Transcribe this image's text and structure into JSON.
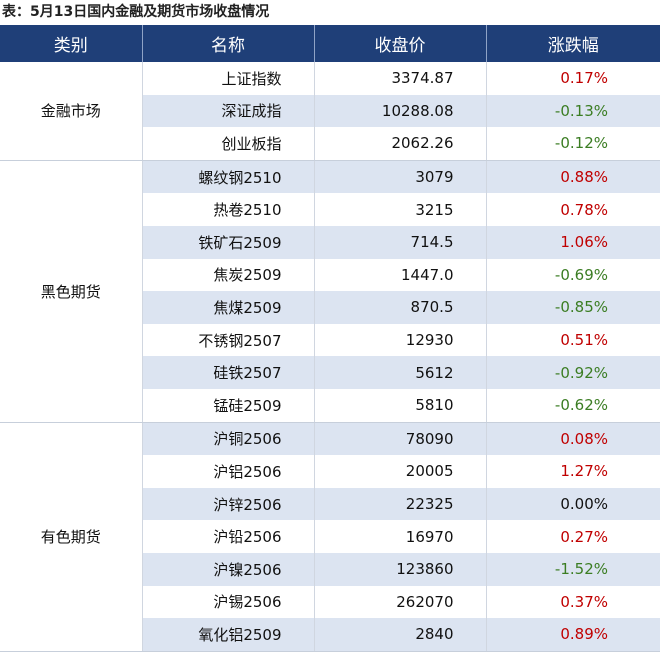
{
  "caption": "表：5月13日国内金融及期货市场收盘情况",
  "headers": [
    "类别",
    "名称",
    "收盘价",
    "涨跌幅"
  ],
  "colors": {
    "header_bg": "#1f3f78",
    "stripe": "#dce4f1",
    "up": "#c00000",
    "down": "#3b7d23"
  },
  "groups": [
    {
      "category": "金融市场",
      "rows": [
        {
          "name": "上证指数",
          "close": "3374.87",
          "change": "0.17%",
          "dir": "up"
        },
        {
          "name": "深证成指",
          "close": "10288.08",
          "change": "-0.13%",
          "dir": "down"
        },
        {
          "name": "创业板指",
          "close": "2062.26",
          "change": "-0.12%",
          "dir": "down"
        }
      ]
    },
    {
      "category": "黑色期货",
      "rows": [
        {
          "name": "螺纹钢2510",
          "close": "3079",
          "change": "0.88%",
          "dir": "up"
        },
        {
          "name": "热卷2510",
          "close": "3215",
          "change": "0.78%",
          "dir": "up"
        },
        {
          "name": "铁矿石2509",
          "close": "714.5",
          "change": "1.06%",
          "dir": "up"
        },
        {
          "name": "焦炭2509",
          "close": "1447.0",
          "change": "-0.69%",
          "dir": "down"
        },
        {
          "name": "焦煤2509",
          "close": "870.5",
          "change": "-0.85%",
          "dir": "down"
        },
        {
          "name": "不锈钢2507",
          "close": "12930",
          "change": "0.51%",
          "dir": "up"
        },
        {
          "name": "硅铁2507",
          "close": "5612",
          "change": "-0.92%",
          "dir": "down"
        },
        {
          "name": "锰硅2509",
          "close": "5810",
          "change": "-0.62%",
          "dir": "down"
        }
      ]
    },
    {
      "category": "有色期货",
      "rows": [
        {
          "name": "沪铜2506",
          "close": "78090",
          "change": "0.08%",
          "dir": "up"
        },
        {
          "name": "沪铝2506",
          "close": "20005",
          "change": "1.27%",
          "dir": "up"
        },
        {
          "name": "沪锌2506",
          "close": "22325",
          "change": "0.00%",
          "dir": "flat"
        },
        {
          "name": "沪铅2506",
          "close": "16970",
          "change": "0.27%",
          "dir": "up"
        },
        {
          "name": "沪镍2506",
          "close": "123860",
          "change": "-1.52%",
          "dir": "down"
        },
        {
          "name": "沪锡2506",
          "close": "262070",
          "change": "0.37%",
          "dir": "up"
        },
        {
          "name": "氧化铝2509",
          "close": "2840",
          "change": "0.89%",
          "dir": "up"
        }
      ]
    }
  ]
}
